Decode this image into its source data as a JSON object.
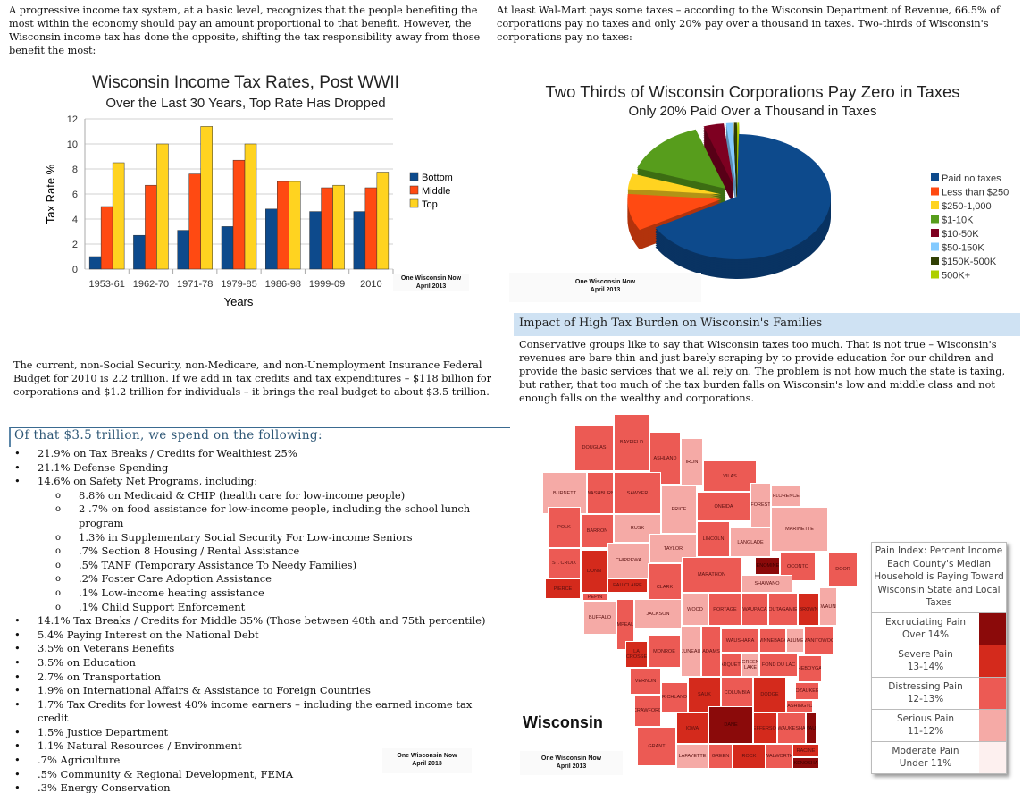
{
  "intro_left": "A progressive income tax system, at a basic level, recognizes that the people benefiting the most within the economy should pay an amount proportional to that benefit. However, the Wisconsin income tax has done the opposite, shifting the tax responsibility away from those benefit the most:",
  "intro_right": "At least Wal-Mart pays some taxes – according to the Wisconsin Department of Revenue, 66.5% of corporations pay no taxes and only 20% pay over a thousand in taxes. Two-thirds of Wisconsin's corporations pay no taxes:",
  "watermark": {
    "line1": "One Wisconsin Now",
    "line2": "April 2013"
  },
  "chart_data": [
    {
      "type": "bar",
      "title": "Wisconsin Income Tax Rates, Post WWII",
      "subtitle": "Over the Last 30 Years, Top Rate Has Dropped",
      "xlabel": "Years",
      "ylabel": "Tax Rate %",
      "ylim": [
        0,
        12
      ],
      "yticks": [
        0,
        2,
        4,
        6,
        8,
        10,
        12
      ],
      "grid": true,
      "legend": "right",
      "categories": [
        "1953-61",
        "1962-70",
        "1971-78",
        "1979-85",
        "1986-98",
        "1999-09",
        "2010"
      ],
      "series": [
        {
          "name": "Bottom",
          "color": "#0d4a8c",
          "values": [
            1.0,
            2.7,
            3.1,
            3.4,
            4.8,
            4.6,
            4.6
          ]
        },
        {
          "name": "Middle",
          "color": "#ff4a12",
          "values": [
            5.0,
            6.7,
            7.6,
            8.7,
            7.0,
            6.5,
            6.5
          ]
        },
        {
          "name": "Top",
          "color": "#ffd320",
          "values": [
            8.5,
            10.0,
            11.4,
            10.0,
            7.0,
            6.7,
            7.75
          ]
        }
      ]
    },
    {
      "type": "pie",
      "title": "Two Thirds of Wisconsin Corporations Pay Zero in Taxes",
      "subtitle": "Only 20% Paid Over a Thousand in Taxes",
      "legend": "right",
      "categories": [
        "Paid no taxes",
        "Less than $250",
        "$250-1,000",
        "$1-10K",
        "$10-50K",
        "$50-150K",
        "$150K-500K",
        "500K+"
      ],
      "values": [
        66.5,
        9.5,
        4,
        14.5,
        3.5,
        1.2,
        0.5,
        0.3
      ],
      "colors": [
        "#0d4a8c",
        "#ff4a12",
        "#ffd320",
        "#579d1c",
        "#7e0021",
        "#83caff",
        "#314004",
        "#aecf00"
      ]
    }
  ],
  "budget_para": "The current, non-Social Security, non-Medicare, and non-Unemployment Insurance Federal Budget for 2010 is 2.2 trillion. If we add in tax credits and tax expenditures – $118 billion for corporations and $1.2 trillion for individuals – it brings the real budget to about $3.5 trillion.",
  "spending": {
    "heading": "Of that $3.5 trillion, we spend on the following:",
    "items": [
      {
        "text": "21.9% on Tax Breaks / Credits for Wealthiest 25%",
        "sub": false
      },
      {
        "text": "21.1% Defense Spending",
        "sub": false
      },
      {
        "text": "14.6% on Safety Net Programs, including:",
        "sub": false
      },
      {
        "text": "8.8% on Medicaid & CHIP (health care for low-income people)",
        "sub": true
      },
      {
        "text": "2 .7% on food assistance for low-income people, including the school lunch program",
        "sub": true
      },
      {
        "text": "1.3% in Supplementary Social Security For Low-income Seniors",
        "sub": true
      },
      {
        "text": ".7% Section 8 Housing / Rental Assistance",
        "sub": true
      },
      {
        "text": ".5% TANF (Temporary Assistance To Needy Families)",
        "sub": true
      },
      {
        "text": ".2% Foster Care Adoption Assistance",
        "sub": true
      },
      {
        "text": ".1% Low-income heating assistance",
        "sub": true
      },
      {
        "text": ".1% Child Support Enforcement",
        "sub": true
      },
      {
        "text": "14.1% Tax Breaks / Credits for Middle 35% (Those between 40th and 75th percentile)",
        "sub": false
      },
      {
        "text": "5.4% Paying Interest on the National Debt",
        "sub": false
      },
      {
        "text": "3.5% on Veterans Benefits",
        "sub": false
      },
      {
        "text": "3.5% on Education",
        "sub": false
      },
      {
        "text": "2.7% on Transportation",
        "sub": false
      },
      {
        "text": "1.9% on International Affairs & Assistance to Foreign Countries",
        "sub": false
      },
      {
        "text": "1.7% Tax Credits for lowest 40% income earners – including the earned income tax credit",
        "sub": false
      },
      {
        "text": "1.5% Justice Department",
        "sub": false
      },
      {
        "text": "1.1% Natural Resources / Environment",
        "sub": false
      },
      {
        "text": ".7% Agriculture",
        "sub": false
      },
      {
        "text": ".5% Community & Regional Development, FEMA",
        "sub": false
      },
      {
        "text": ".3% Energy Conservation",
        "sub": false
      },
      {
        "text": ".3% NASA",
        "sub": false
      }
    ]
  },
  "impact": {
    "heading": "Impact of High Tax Burden on Wisconsin's Families",
    "body": "Conservative groups like to say that Wisconsin taxes too much. That is not true – Wisconsin's revenues are bare thin and just barely scraping by to provide education for our children and provide the basic services that we all rely on. The problem is not how much the state is taxing, but rather, that too much of the tax burden falls on Wisconsin's low and middle class and not enough falls on the wealthy and corporations."
  },
  "map": {
    "label": "Wisconsin",
    "legend_title": "Pain Index: Percent Income Each County's Median Household is Paying Toward Wisconsin State and Local Taxes",
    "tiers": [
      {
        "name": "Excruciating Pain",
        "range": "Over 14%",
        "color": "#8b0a0a"
      },
      {
        "name": "Severe Pain",
        "range": "13-14%",
        "color": "#d42a1c"
      },
      {
        "name": "Distressing Pain",
        "range": "12-13%",
        "color": "#ec5a54"
      },
      {
        "name": "Serious Pain",
        "range": "11-12%",
        "color": "#f5aaa6"
      },
      {
        "name": "Moderate Pain",
        "range": "Under 11%",
        "color": "#fdf0ef"
      }
    ],
    "counties": [
      [
        "DOUGLAS",
        2
      ],
      [
        "BAYFIELD",
        2
      ],
      [
        "ASHLAND",
        2
      ],
      [
        "IRON",
        3
      ],
      [
        "VILAS",
        2
      ],
      [
        "BURNETT",
        3
      ],
      [
        "WASHBURN",
        2
      ],
      [
        "SAWYER",
        2
      ],
      [
        "PRICE",
        3
      ],
      [
        "ONEIDA",
        2
      ],
      [
        "FLORENCE",
        3
      ],
      [
        "FOREST",
        3
      ],
      [
        "MARINETTE",
        3
      ],
      [
        "POLK",
        2
      ],
      [
        "BARRON",
        2
      ],
      [
        "RUSK",
        3
      ],
      [
        "TAYLOR",
        3
      ],
      [
        "LINCOLN",
        2
      ],
      [
        "LANGLADE",
        3
      ],
      [
        "ST. CROIX",
        2
      ],
      [
        "DUNN",
        1
      ],
      [
        "CHIPPEWA",
        3
      ],
      [
        "MARATHON",
        2
      ],
      [
        "MENOMINEE",
        0
      ],
      [
        "OCONTO",
        2
      ],
      [
        "SHAWANO",
        3
      ],
      [
        "PIERCE",
        1
      ],
      [
        "EAU CLAIRE",
        1
      ],
      [
        "CLARK",
        2
      ],
      [
        "DOOR",
        2
      ],
      [
        "PEPIN",
        2
      ],
      [
        "BUFFALO",
        3
      ],
      [
        "TREMPEALEAU",
        2
      ],
      [
        "JACKSON",
        3
      ],
      [
        "WOOD",
        3
      ],
      [
        "PORTAGE",
        2
      ],
      [
        "WAUPACA",
        2
      ],
      [
        "OUTAGAMIE",
        2
      ],
      [
        "BROWN",
        1
      ],
      [
        "KEWAUNEE",
        3
      ],
      [
        "LA CROSSE",
        1
      ],
      [
        "MONROE",
        2
      ],
      [
        "JUNEAU",
        3
      ],
      [
        "ADAMS",
        2
      ],
      [
        "WAUSHARA",
        2
      ],
      [
        "WINNEBAGO",
        2
      ],
      [
        "CALUMET",
        3
      ],
      [
        "MANITOWOC",
        2
      ],
      [
        "MARQUETTE",
        2
      ],
      [
        "GREEN LAKE",
        3
      ],
      [
        "FOND DU LAC",
        2
      ],
      [
        "SHEBOYGAN",
        2
      ],
      [
        "VERNON",
        2
      ],
      [
        "RICHLAND",
        2
      ],
      [
        "SAUK",
        1
      ],
      [
        "COLUMBIA",
        2
      ],
      [
        "DODGE",
        1
      ],
      [
        "OZAUKEE",
        2
      ],
      [
        "WASHINGTON",
        2
      ],
      [
        "CRAWFORD",
        2
      ],
      [
        "GRANT",
        2
      ],
      [
        "IOWA",
        1
      ],
      [
        "DANE",
        0
      ],
      [
        "JEFFERSON",
        1
      ],
      [
        "WAUKESHA",
        2
      ],
      [
        "MILWAUKEE",
        0
      ],
      [
        "LAFAYETTE",
        3
      ],
      [
        "GREEN",
        2
      ],
      [
        "ROCK",
        1
      ],
      [
        "WALWORTH",
        2
      ],
      [
        "RACINE",
        1
      ],
      [
        "KENOSHA",
        0
      ]
    ]
  }
}
